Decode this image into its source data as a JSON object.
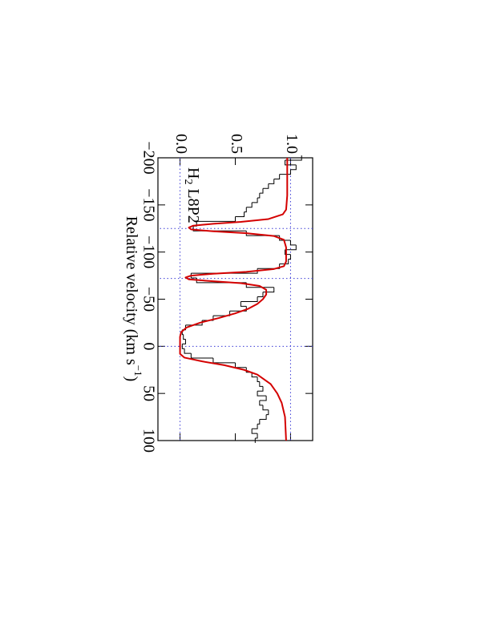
{
  "chart_data": {
    "type": "line",
    "annotation": {
      "main": "H",
      "sub": "2",
      "rest": " L8P2"
    },
    "x_label": {
      "main": "Relative velocity (km s",
      "sup": "−1",
      "end": ")"
    },
    "xlim": [
      -200,
      100
    ],
    "ylim": [
      -0.2,
      1.2
    ],
    "xticks": [
      {
        "value": -200,
        "label": "−200"
      },
      {
        "value": -150,
        "label": "−150"
      },
      {
        "value": -100,
        "label": "−100"
      },
      {
        "value": -50,
        "label": "−50"
      },
      0,
      50,
      100
    ],
    "yticks": [
      {
        "value": 0,
        "label": "0.0"
      },
      {
        "value": 0.5,
        "label": "0.5"
      },
      {
        "value": 1,
        "label": "1.0"
      }
    ],
    "ref_levels": [
      0,
      1
    ],
    "line_positions": [
      -125,
      -72,
      0
    ],
    "ref_color": "#3b3bd6",
    "series": [
      {
        "style": "steps",
        "color": "#000000",
        "x": [
          -200,
          -195,
          -190,
          -185,
          -180,
          -175,
          -170,
          -165,
          -160,
          -155,
          -150,
          -145,
          -140,
          -135,
          -130,
          -125,
          -120,
          -115,
          -110,
          -105,
          -100,
          -95,
          -90,
          -85,
          -80,
          -75,
          -70,
          -65,
          -60,
          -55,
          -50,
          -45,
          -40,
          -35,
          -30,
          -25,
          -20,
          -15,
          -10,
          -5,
          0,
          5,
          10,
          15,
          20,
          25,
          30,
          35,
          40,
          45,
          50,
          55,
          60,
          65,
          70,
          75,
          80,
          85,
          90,
          95,
          100
        ],
        "values": [
          1.1,
          0.95,
          1.05,
          1.0,
          0.9,
          0.85,
          0.8,
          0.75,
          0.72,
          0.7,
          0.65,
          0.6,
          0.58,
          0.5,
          0.15,
          0.12,
          0.6,
          0.9,
          1.0,
          1.05,
          0.95,
          1.0,
          0.98,
          0.9,
          0.7,
          0.1,
          0.15,
          0.6,
          0.85,
          0.75,
          0.7,
          0.55,
          0.6,
          0.45,
          0.3,
          0.2,
          0.05,
          0.02,
          0.03,
          0.05,
          0.02,
          0.04,
          0.1,
          0.3,
          0.5,
          0.6,
          0.65,
          0.7,
          0.72,
          0.75,
          0.7,
          0.78,
          0.72,
          0.75,
          0.8,
          0.78,
          0.72,
          0.7,
          0.65,
          0.7,
          0.68
        ]
      },
      {
        "style": "line",
        "color": "#d40000",
        "x": [
          -200,
          -160,
          -145,
          -140,
          -135,
          -132,
          -130,
          -128,
          -126,
          -124,
          -122,
          -120,
          -117,
          -113,
          -105,
          -90,
          -85,
          -82,
          -79,
          -77,
          -75,
          -73,
          -71,
          -69,
          -67,
          -64,
          -60,
          -55,
          -50,
          -45,
          -40,
          -35,
          -30,
          -25,
          -20,
          -15,
          -10,
          0,
          8,
          12,
          16,
          20,
          25,
          30,
          40,
          50,
          60,
          75,
          100
        ],
        "values": [
          0.97,
          0.97,
          0.96,
          0.93,
          0.8,
          0.55,
          0.3,
          0.12,
          0.08,
          0.1,
          0.3,
          0.6,
          0.85,
          0.94,
          0.96,
          0.96,
          0.94,
          0.85,
          0.6,
          0.3,
          0.1,
          0.05,
          0.08,
          0.3,
          0.55,
          0.72,
          0.78,
          0.78,
          0.75,
          0.7,
          0.62,
          0.5,
          0.35,
          0.18,
          0.06,
          0.01,
          0,
          0,
          0,
          0.04,
          0.2,
          0.4,
          0.58,
          0.7,
          0.82,
          0.88,
          0.92,
          0.95,
          0.96
        ]
      }
    ]
  }
}
